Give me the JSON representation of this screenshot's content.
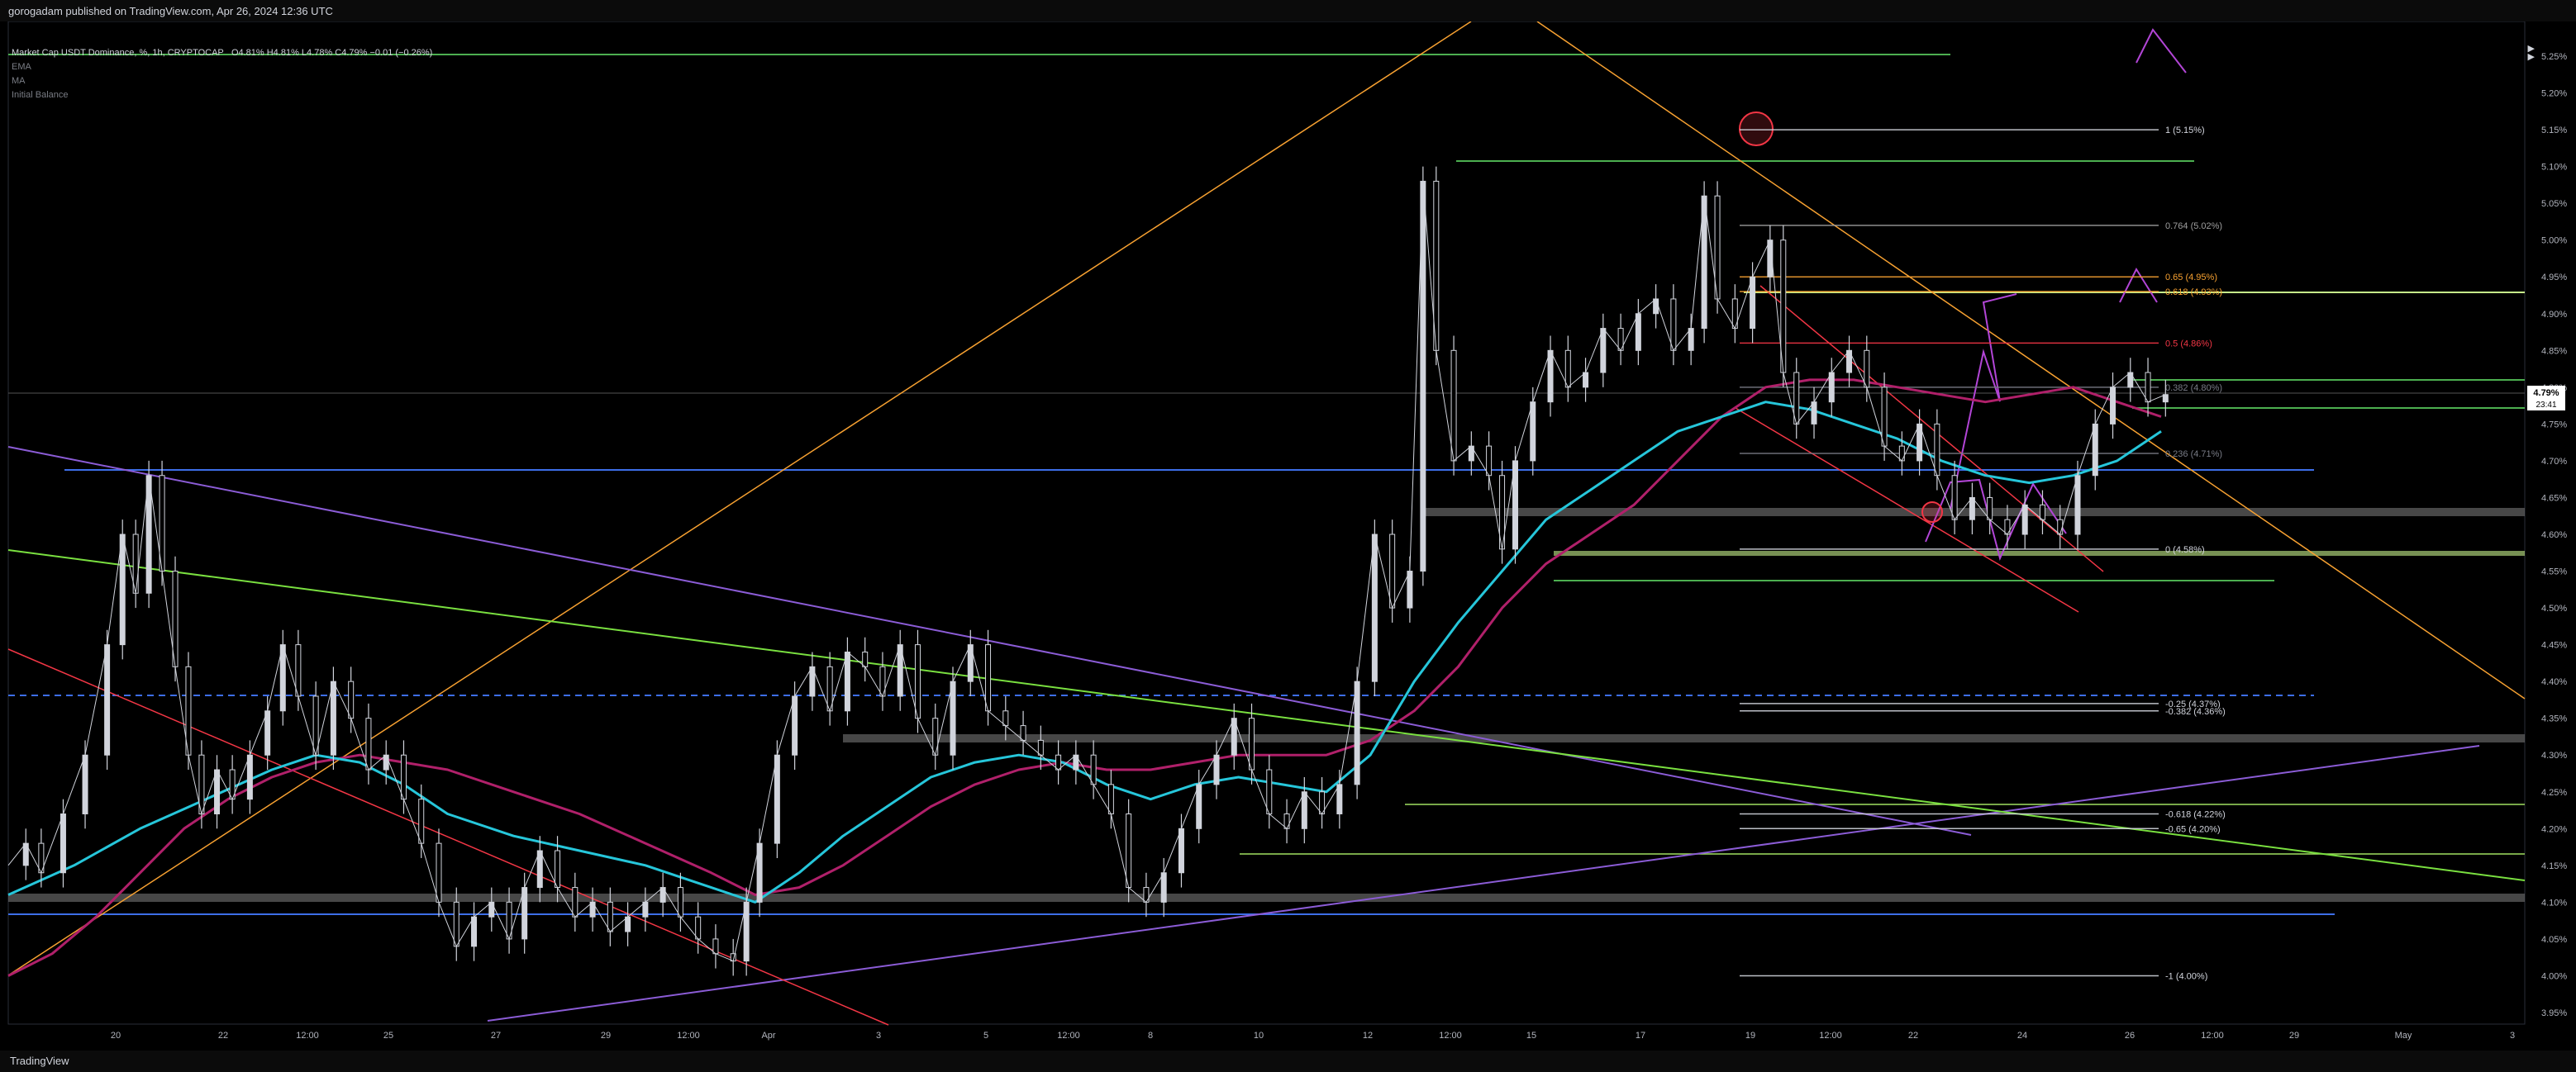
{
  "header": {
    "text": "gorogadam published on TradingView.com, Apr 26, 2024 12:36 UTC"
  },
  "legend": {
    "symbol": "Market Cap USDT Dominance, %, 1h, CRYPTOCAP",
    "ohlc": "O4.81%  H4.81%  L4.78%  C4.79%  −0.01 (−0.26%)",
    "indicators": [
      "EMA",
      "MA",
      "Initial Balance"
    ]
  },
  "footer": {
    "logo": "TradingView"
  },
  "colors": {
    "ema": "#26c6da",
    "ma": "#b0206a",
    "fib_neutral": "#bdbdbd",
    "orange": "#f7a131",
    "red": "#f23645",
    "blue": "#3d6ee8",
    "purple": "#8b5cd6",
    "green": "#4caf50",
    "lime": "#a0e060",
    "magenta": "#b245d6"
  },
  "chart_data": {
    "type": "line",
    "title": "Market Cap USDT Dominance, %, 1h, CRYPTOCAP",
    "y_axis": {
      "min": 3.93,
      "max": 5.3,
      "ticks": [
        "5.25%",
        "5.20%",
        "5.15%",
        "5.10%",
        "5.05%",
        "5.00%",
        "4.95%",
        "4.90%",
        "4.85%",
        "4.80%",
        "4.75%",
        "4.70%",
        "4.65%",
        "4.60%",
        "4.55%",
        "4.50%",
        "4.45%",
        "4.40%",
        "4.35%",
        "4.30%",
        "4.25%",
        "4.20%",
        "4.15%",
        "4.10%",
        "4.05%",
        "4.00%",
        "3.95%"
      ],
      "tick_values": [
        5.25,
        5.2,
        5.15,
        5.1,
        5.05,
        5.0,
        4.95,
        4.9,
        4.85,
        4.8,
        4.75,
        4.7,
        4.65,
        4.6,
        4.55,
        4.5,
        4.45,
        4.4,
        4.35,
        4.3,
        4.25,
        4.2,
        4.15,
        4.1,
        4.05,
        4.0,
        3.95
      ]
    },
    "x_axis": {
      "ticks": [
        "20",
        "22",
        "12:00",
        "25",
        "27",
        "29",
        "12:00",
        "Apr",
        "3",
        "5",
        "12:00",
        "8",
        "10",
        "12",
        "12:00",
        "15",
        "17",
        "19",
        "12:00",
        "22",
        "24",
        "26",
        "12:00",
        "29",
        "May",
        "3"
      ]
    },
    "price_label": {
      "value": "4.79%",
      "countdown": "23:41"
    },
    "price_path": [
      [
        0,
        4.15
      ],
      [
        0.8,
        4.18
      ],
      [
        1.5,
        4.14
      ],
      [
        2.5,
        4.22
      ],
      [
        3.5,
        4.3
      ],
      [
        4.5,
        4.45
      ],
      [
        5.2,
        4.6
      ],
      [
        5.8,
        4.52
      ],
      [
        6.4,
        4.68
      ],
      [
        7,
        4.55
      ],
      [
        7.6,
        4.42
      ],
      [
        8.2,
        4.3
      ],
      [
        8.8,
        4.22
      ],
      [
        9.5,
        4.28
      ],
      [
        10.2,
        4.24
      ],
      [
        11,
        4.3
      ],
      [
        11.8,
        4.36
      ],
      [
        12.5,
        4.45
      ],
      [
        13.2,
        4.38
      ],
      [
        14,
        4.3
      ],
      [
        14.8,
        4.4
      ],
      [
        15.6,
        4.35
      ],
      [
        16.4,
        4.28
      ],
      [
        17.2,
        4.3
      ],
      [
        18,
        4.24
      ],
      [
        18.8,
        4.18
      ],
      [
        19.6,
        4.1
      ],
      [
        20.4,
        4.04
      ],
      [
        21.2,
        4.08
      ],
      [
        22,
        4.1
      ],
      [
        22.8,
        4.05
      ],
      [
        23.5,
        4.12
      ],
      [
        24.2,
        4.17
      ],
      [
        25,
        4.12
      ],
      [
        25.8,
        4.08
      ],
      [
        26.6,
        4.1
      ],
      [
        27.4,
        4.06
      ],
      [
        28.2,
        4.08
      ],
      [
        29,
        4.1
      ],
      [
        29.8,
        4.12
      ],
      [
        30.6,
        4.08
      ],
      [
        31.4,
        4.05
      ],
      [
        32.2,
        4.03
      ],
      [
        33,
        4.02
      ],
      [
        33.6,
        4.1
      ],
      [
        34.2,
        4.18
      ],
      [
        35,
        4.3
      ],
      [
        35.8,
        4.38
      ],
      [
        36.6,
        4.42
      ],
      [
        37.4,
        4.36
      ],
      [
        38.2,
        4.44
      ],
      [
        39,
        4.42
      ],
      [
        39.8,
        4.38
      ],
      [
        40.6,
        4.45
      ],
      [
        41.4,
        4.35
      ],
      [
        42.2,
        4.3
      ],
      [
        43,
        4.4
      ],
      [
        43.8,
        4.45
      ],
      [
        44.6,
        4.36
      ],
      [
        45.4,
        4.34
      ],
      [
        46.2,
        4.32
      ],
      [
        47,
        4.3
      ],
      [
        47.8,
        4.28
      ],
      [
        48.6,
        4.3
      ],
      [
        49.4,
        4.26
      ],
      [
        50.2,
        4.22
      ],
      [
        51,
        4.12
      ],
      [
        51.8,
        4.1
      ],
      [
        52.6,
        4.14
      ],
      [
        53.4,
        4.2
      ],
      [
        54.2,
        4.26
      ],
      [
        55,
        4.3
      ],
      [
        55.8,
        4.35
      ],
      [
        56.6,
        4.28
      ],
      [
        57.4,
        4.22
      ],
      [
        58.2,
        4.2
      ],
      [
        59,
        4.25
      ],
      [
        59.8,
        4.22
      ],
      [
        60.6,
        4.26
      ],
      [
        61.4,
        4.4
      ],
      [
        62.2,
        4.6
      ],
      [
        63,
        4.5
      ],
      [
        63.8,
        4.55
      ],
      [
        64.4,
        5.08
      ],
      [
        65,
        4.85
      ],
      [
        65.8,
        4.7
      ],
      [
        66.6,
        4.72
      ],
      [
        67.4,
        4.68
      ],
      [
        68,
        4.58
      ],
      [
        68.6,
        4.7
      ],
      [
        69.4,
        4.78
      ],
      [
        70.2,
        4.85
      ],
      [
        71,
        4.8
      ],
      [
        71.8,
        4.82
      ],
      [
        72.6,
        4.88
      ],
      [
        73.4,
        4.85
      ],
      [
        74.2,
        4.9
      ],
      [
        75,
        4.92
      ],
      [
        75.8,
        4.85
      ],
      [
        76.6,
        4.88
      ],
      [
        77.2,
        5.06
      ],
      [
        77.8,
        4.92
      ],
      [
        78.6,
        4.88
      ],
      [
        79.4,
        4.95
      ],
      [
        80.2,
        5.0
      ],
      [
        80.8,
        4.82
      ],
      [
        81.4,
        4.75
      ],
      [
        82.2,
        4.78
      ],
      [
        83,
        4.82
      ],
      [
        83.8,
        4.85
      ],
      [
        84.6,
        4.8
      ],
      [
        85.4,
        4.72
      ],
      [
        86.2,
        4.7
      ],
      [
        87,
        4.75
      ],
      [
        87.8,
        4.68
      ],
      [
        88.6,
        4.62
      ],
      [
        89.4,
        4.65
      ],
      [
        90.2,
        4.62
      ],
      [
        91,
        4.6
      ],
      [
        91.8,
        4.64
      ],
      [
        92.6,
        4.62
      ],
      [
        93.4,
        4.6
      ],
      [
        94.2,
        4.68
      ],
      [
        95,
        4.75
      ],
      [
        95.8,
        4.8
      ],
      [
        96.6,
        4.82
      ],
      [
        97.4,
        4.78
      ],
      [
        98.2,
        4.79
      ]
    ],
    "ema_path": [
      [
        0,
        4.11
      ],
      [
        3,
        4.15
      ],
      [
        6,
        4.2
      ],
      [
        9,
        4.24
      ],
      [
        12,
        4.28
      ],
      [
        14,
        4.3
      ],
      [
        16,
        4.29
      ],
      [
        18,
        4.26
      ],
      [
        20,
        4.22
      ],
      [
        23,
        4.19
      ],
      [
        26,
        4.17
      ],
      [
        29,
        4.15
      ],
      [
        32,
        4.12
      ],
      [
        34,
        4.1
      ],
      [
        36,
        4.14
      ],
      [
        38,
        4.19
      ],
      [
        40,
        4.23
      ],
      [
        42,
        4.27
      ],
      [
        44,
        4.29
      ],
      [
        46,
        4.3
      ],
      [
        48,
        4.29
      ],
      [
        50,
        4.26
      ],
      [
        52,
        4.24
      ],
      [
        54,
        4.26
      ],
      [
        56,
        4.27
      ],
      [
        58,
        4.26
      ],
      [
        60,
        4.25
      ],
      [
        62,
        4.3
      ],
      [
        64,
        4.4
      ],
      [
        66,
        4.48
      ],
      [
        68,
        4.55
      ],
      [
        70,
        4.62
      ],
      [
        72,
        4.66
      ],
      [
        74,
        4.7
      ],
      [
        76,
        4.74
      ],
      [
        78,
        4.76
      ],
      [
        80,
        4.78
      ],
      [
        82,
        4.77
      ],
      [
        84,
        4.75
      ],
      [
        86,
        4.73
      ],
      [
        88,
        4.7
      ],
      [
        90,
        4.68
      ],
      [
        92,
        4.67
      ],
      [
        94,
        4.68
      ],
      [
        96,
        4.7
      ],
      [
        98,
        4.74
      ]
    ],
    "ma_path": [
      [
        0,
        4.0
      ],
      [
        2,
        4.03
      ],
      [
        4,
        4.08
      ],
      [
        6,
        4.14
      ],
      [
        8,
        4.2
      ],
      [
        10,
        4.24
      ],
      [
        12,
        4.27
      ],
      [
        14,
        4.29
      ],
      [
        16,
        4.3
      ],
      [
        18,
        4.29
      ],
      [
        20,
        4.28
      ],
      [
        23,
        4.25
      ],
      [
        26,
        4.22
      ],
      [
        29,
        4.18
      ],
      [
        32,
        4.14
      ],
      [
        34,
        4.11
      ],
      [
        36,
        4.12
      ],
      [
        38,
        4.15
      ],
      [
        40,
        4.19
      ],
      [
        42,
        4.23
      ],
      [
        44,
        4.26
      ],
      [
        46,
        4.28
      ],
      [
        48,
        4.29
      ],
      [
        50,
        4.28
      ],
      [
        52,
        4.28
      ],
      [
        54,
        4.29
      ],
      [
        56,
        4.3
      ],
      [
        58,
        4.3
      ],
      [
        60,
        4.3
      ],
      [
        62,
        4.32
      ],
      [
        64,
        4.36
      ],
      [
        66,
        4.42
      ],
      [
        68,
        4.5
      ],
      [
        70,
        4.56
      ],
      [
        72,
        4.6
      ],
      [
        74,
        4.64
      ],
      [
        76,
        4.7
      ],
      [
        78,
        4.76
      ],
      [
        80,
        4.8
      ],
      [
        82,
        4.81
      ],
      [
        84,
        4.81
      ],
      [
        86,
        4.8
      ],
      [
        88,
        4.79
      ],
      [
        90,
        4.78
      ],
      [
        92,
        4.79
      ],
      [
        94,
        4.8
      ],
      [
        96,
        4.78
      ],
      [
        98,
        4.76
      ]
    ],
    "fib_levels": [
      {
        "label": "1 (5.15%)",
        "value": 5.15
      },
      {
        "label": "0.764 (5.02%)",
        "value": 5.02
      },
      {
        "label": "0.65 (4.95%)",
        "value": 4.95
      },
      {
        "label": "0.618 (4.93%)",
        "value": 4.93
      },
      {
        "label": "0.5 (4.86%)",
        "value": 4.86
      },
      {
        "label": "0.382 (4.80%)",
        "value": 4.8
      },
      {
        "label": "0.236 (4.71%)",
        "value": 4.71
      },
      {
        "label": "0 (4.58%)",
        "value": 4.58
      },
      {
        "label": "-0.25 (4.37%)",
        "value": 4.37
      },
      {
        "label": "-0.382 (4.36%)",
        "value": 4.36
      },
      {
        "label": "-0.618 (4.22%)",
        "value": 4.22
      },
      {
        "label": "-0.65 (4.20%)",
        "value": 4.2
      },
      {
        "label": "-1 (4.00%)",
        "value": 4.0
      }
    ]
  }
}
